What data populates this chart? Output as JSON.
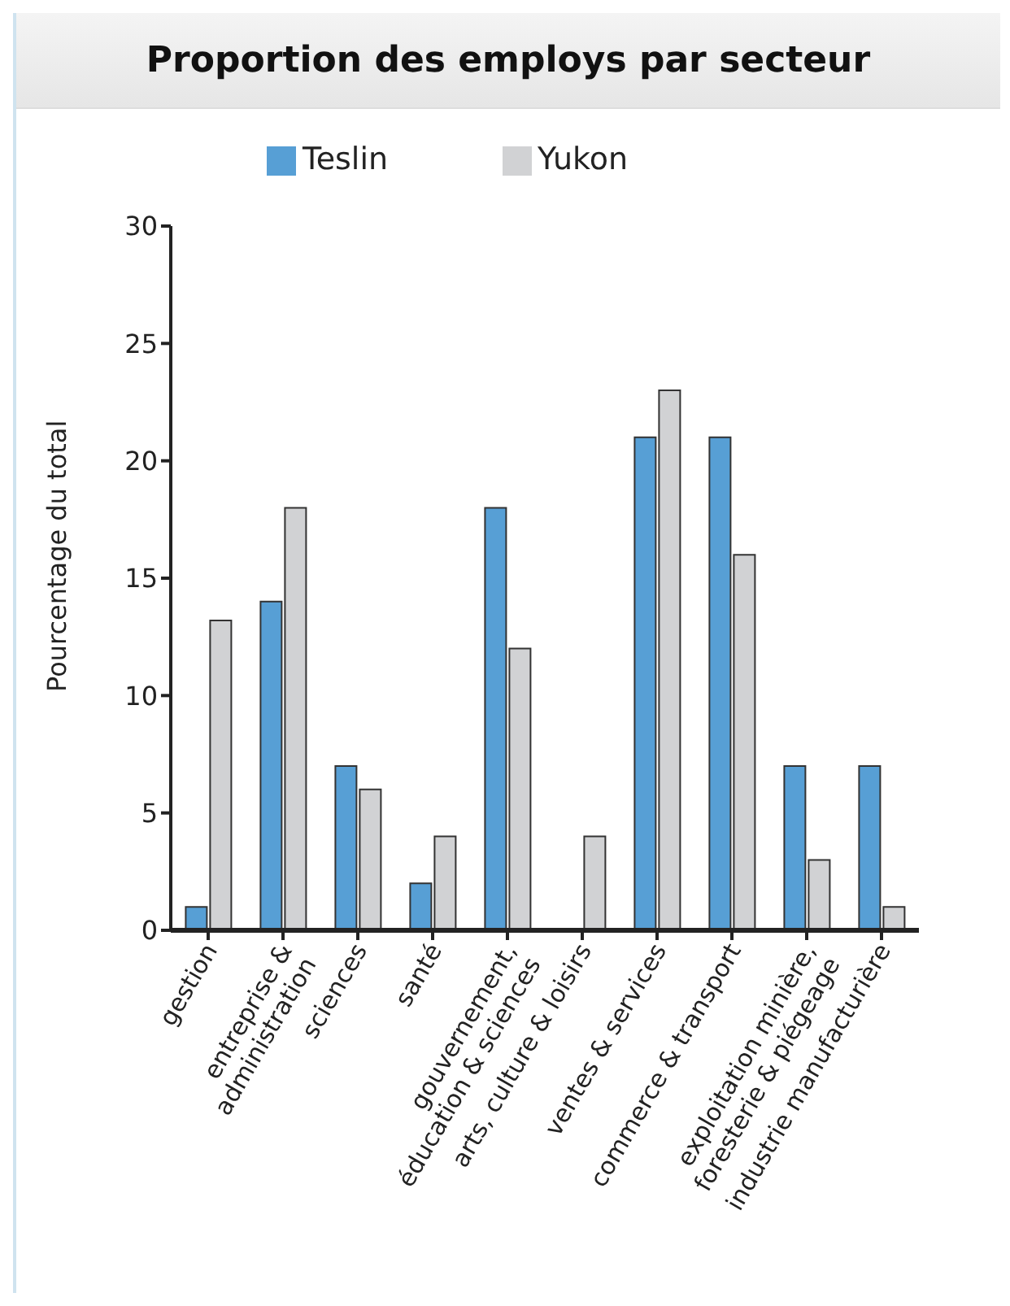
{
  "chart_data": {
    "type": "bar",
    "title": "Proportion des employs par secteur",
    "ylabel": "Pourcentage du total",
    "categories": [
      "gestion",
      "entreprise &\nadministration",
      "sciences",
      "santé",
      "gouvernement,\néducation & sciences",
      "arts, culture & loisirs",
      "ventes & services",
      "commerce & transport",
      "exploitation minière,\nforesterie & piégeage",
      "industrie manufacturière"
    ],
    "series": [
      {
        "name": "Teslin",
        "color": "#579fd5",
        "values": [
          1,
          14,
          7,
          2,
          18,
          0,
          21,
          21,
          7,
          7
        ]
      },
      {
        "name": "Yukon",
        "color": "#d1d2d4",
        "values": [
          13.2,
          18,
          6,
          4,
          12,
          4,
          23,
          16,
          3,
          1
        ]
      }
    ],
    "ylim": [
      0,
      30
    ],
    "yticks": [
      0,
      5,
      10,
      15,
      20,
      25,
      30
    ],
    "grid": false,
    "legend": "top"
  }
}
